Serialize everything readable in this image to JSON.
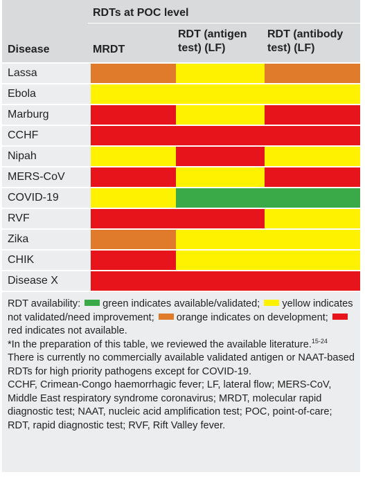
{
  "table": {
    "group_header": "RDTs at POC level",
    "columns": [
      "Disease",
      "MRDT",
      "RDT (antigen test) (LF)",
      "RDT (antibody test) (LF)"
    ],
    "rows": [
      {
        "disease": "Lassa",
        "cells": [
          "#e07b2c",
          "#fff200",
          "#e07b2c"
        ]
      },
      {
        "disease": "Ebola",
        "cells": [
          "#fff200",
          "#fff200",
          "#fff200"
        ]
      },
      {
        "disease": "Marburg",
        "cells": [
          "#e8141b",
          "#fff200",
          "#e8141b"
        ]
      },
      {
        "disease": "CCHF",
        "cells": [
          "#e8141b",
          "#e8141b",
          "#e8141b"
        ]
      },
      {
        "disease": "Nipah",
        "cells": [
          "#fff200",
          "#e8141b",
          "#fff200"
        ]
      },
      {
        "disease": "MERS-CoV",
        "cells": [
          "#e8141b",
          "#fff200",
          "#e8141b"
        ]
      },
      {
        "disease": "COVID-19",
        "cells": [
          "#fff200",
          "#3aaa48",
          "#3aaa48"
        ]
      },
      {
        "disease": "RVF",
        "cells": [
          "#e8141b",
          "#e8141b",
          "#fff200"
        ]
      },
      {
        "disease": "Zika",
        "cells": [
          "#e07b2c",
          "#fff200",
          "#fff200"
        ]
      },
      {
        "disease": "CHIK",
        "cells": [
          "#e8141b",
          "#fff200",
          "#fff200"
        ]
      },
      {
        "disease": "Disease X",
        "cells": [
          "#e8141b",
          "#e8141b",
          "#e8141b"
        ]
      }
    ]
  },
  "footnote": {
    "legend_intro": "RDT availability:",
    "legend": [
      {
        "color": "#3aaa48",
        "text": "green indicates available/validated;"
      },
      {
        "color": "#fff200",
        "text": "yellow indicates not validated/need improvement;"
      },
      {
        "color": "#e07b2c",
        "text": "orange indicates on development;"
      },
      {
        "color": "#e8141b",
        "text": "red indicates not available."
      }
    ],
    "note_start": "*In the preparation of this table, we reviewed the available literature.",
    "note_ref": "15-24",
    "note_end": " There is currently no commercially available validated antigen or NAAT-based RDTs for high priority pathogens except for COVID-19.",
    "abbreviations": "CCHF, Crimean-Congo haemorrhagic fever; LF, lateral flow; MERS-CoV, Middle East respiratory syndrome coronavirus; MRDT, molecular rapid diagnostic test; NAAT, nucleic acid amplification test; POC, point-of-care; RDT, rapid diagnostic test; RVF, Rift Valley fever."
  }
}
